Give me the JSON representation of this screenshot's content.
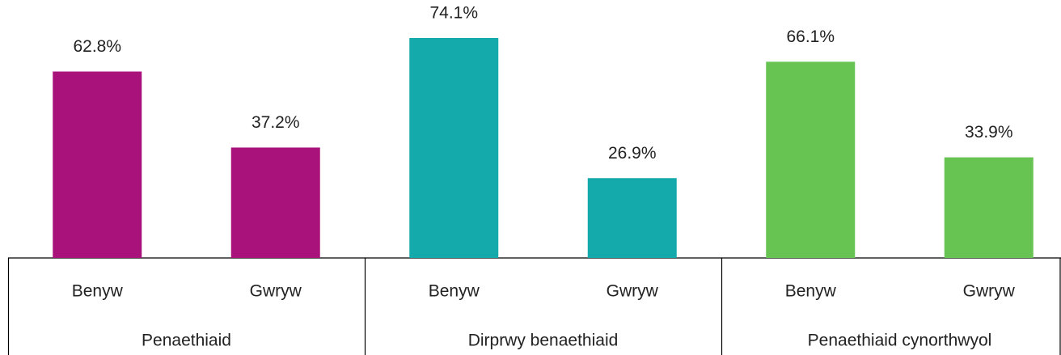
{
  "chart_data": {
    "type": "bar",
    "categories": [
      "Benyw",
      "Gwryw",
      "Benyw",
      "Gwryw",
      "Benyw",
      "Gwryw"
    ],
    "groups": [
      {
        "name": "Penaethiaid",
        "color": "#a8127a"
      },
      {
        "name": "Dirprwy benaethiaid",
        "color": "#14a9aa"
      },
      {
        "name": "Penaethiaid cynorthwyol",
        "color": "#67c352"
      }
    ],
    "values": [
      62.8,
      37.2,
      74.1,
      26.9,
      66.1,
      33.9
    ],
    "value_labels": [
      "62.8%",
      "37.2%",
      "74.1%",
      "26.9%",
      "66.1%",
      "33.9%"
    ]
  }
}
